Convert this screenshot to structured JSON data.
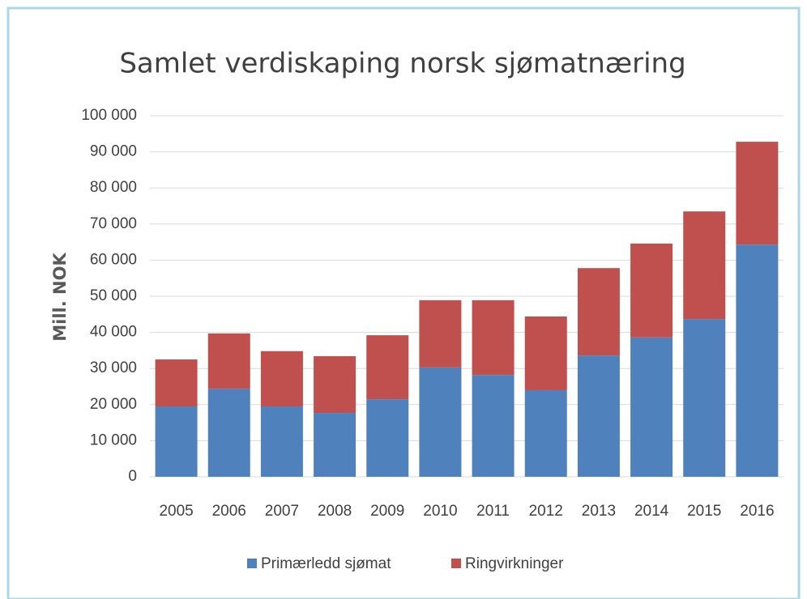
{
  "chart_data": {
    "type": "stacked_bar",
    "title": "Samlet verdiskaping norsk sjømatnæring",
    "y_label": "Mill. NOK",
    "categories": [
      "2005",
      "2006",
      "2007",
      "2008",
      "2009",
      "2010",
      "2011",
      "2012",
      "2013",
      "2014",
      "2015",
      "2016"
    ],
    "series": [
      {
        "name": "Primærledd sjømat",
        "color": "#4f81bd",
        "values": [
          19500,
          24400,
          19500,
          17700,
          21500,
          30300,
          28200,
          24000,
          33600,
          38600,
          43700,
          64300
        ]
      },
      {
        "name": "Ringvirkninger",
        "color": "#c0504d",
        "values": [
          13000,
          15300,
          15300,
          15700,
          17700,
          18600,
          20700,
          20400,
          24200,
          26000,
          29800,
          28500
        ]
      }
    ],
    "ylim": [
      0,
      100000
    ],
    "yticks": [
      0,
      {
        "value": 10000,
        "label": "10 000"
      },
      {
        "value": 20000,
        "label": "20 000"
      },
      {
        "value": 30000,
        "label": "30 000"
      },
      {
        "value": 40000,
        "label": "40 000"
      },
      {
        "value": 50000,
        "label": "50 000"
      },
      {
        "value": 60000,
        "label": "60 000"
      },
      {
        "value": 70000,
        "label": "70 000"
      },
      {
        "value": 80000,
        "label": "80 000"
      },
      {
        "value": 90000,
        "label": "90 000"
      },
      {
        "value": 100000,
        "label": "100 000"
      }
    ],
    "grid": true,
    "legend": "bottom"
  }
}
